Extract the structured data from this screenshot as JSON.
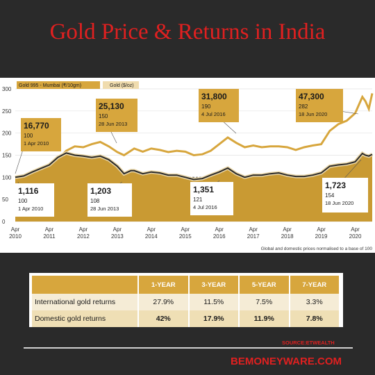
{
  "title": "Gold Price & Returns in India",
  "chart_data": {
    "type": "area",
    "legend": [
      "Gold 995 - Mumbai (₹/10gm)",
      "Gold ($/oz)"
    ],
    "legend_placement": "top-left",
    "ylim": [
      0,
      300
    ],
    "y_ticks": [
      "300",
      "250",
      "200",
      "150",
      "100",
      "50",
      "0"
    ],
    "x_ticks": [
      {
        "top": "Apr",
        "bottom": "2010"
      },
      {
        "top": "Apr",
        "bottom": "2011"
      },
      {
        "top": "Apr",
        "bottom": "2012"
      },
      {
        "top": "Apr",
        "bottom": "2013"
      },
      {
        "top": "Apr",
        "bottom": "2014"
      },
      {
        "top": "Apr",
        "bottom": "2015"
      },
      {
        "top": "Apr",
        "bottom": "2016"
      },
      {
        "top": "Apr",
        "bottom": "2017"
      },
      {
        "top": "Apr",
        "bottom": "2018"
      },
      {
        "top": "Apr",
        "bottom": "2019"
      },
      {
        "top": "Apr",
        "bottom": "2020"
      }
    ],
    "x_range": [
      2010.25,
      2020.75
    ],
    "series": [
      {
        "name": "Gold 995 - Mumbai (₹/10gm)",
        "color": "#d7a63d",
        "x": [
          2010.25,
          2010.5,
          2010.75,
          2011.0,
          2011.25,
          2011.5,
          2011.75,
          2012.0,
          2012.25,
          2012.5,
          2012.75,
          2013.0,
          2013.25,
          2013.45,
          2013.65,
          2013.75,
          2014.0,
          2014.25,
          2014.5,
          2014.75,
          2015.0,
          2015.25,
          2015.5,
          2015.75,
          2016.0,
          2016.25,
          2016.5,
          2016.75,
          2017.0,
          2017.25,
          2017.5,
          2017.75,
          2018.0,
          2018.25,
          2018.5,
          2018.75,
          2019.0,
          2019.25,
          2019.5,
          2019.75,
          2020.0,
          2020.25,
          2020.46,
          2020.55,
          2020.65,
          2020.75
        ],
        "values": [
          100,
          103,
          112,
          118,
          125,
          140,
          160,
          170,
          168,
          175,
          180,
          170,
          157,
          150,
          160,
          165,
          158,
          165,
          162,
          157,
          160,
          158,
          150,
          152,
          160,
          175,
          190,
          178,
          168,
          172,
          168,
          170,
          170,
          168,
          162,
          168,
          172,
          175,
          205,
          220,
          228,
          245,
          282,
          272,
          255,
          290
        ]
      },
      {
        "name": "Gold ($/oz)",
        "color": "#2a2a2a",
        "x": [
          2010.25,
          2010.5,
          2010.75,
          2011.0,
          2011.25,
          2011.5,
          2011.75,
          2012.0,
          2012.25,
          2012.5,
          2012.75,
          2013.0,
          2013.25,
          2013.45,
          2013.65,
          2013.75,
          2014.0,
          2014.25,
          2014.5,
          2014.75,
          2015.0,
          2015.25,
          2015.5,
          2015.75,
          2016.0,
          2016.25,
          2016.5,
          2016.75,
          2017.0,
          2017.25,
          2017.5,
          2017.75,
          2018.0,
          2018.25,
          2018.5,
          2018.75,
          2019.0,
          2019.25,
          2019.5,
          2019.75,
          2020.0,
          2020.25,
          2020.46,
          2020.55,
          2020.65,
          2020.75
        ],
        "values": [
          100,
          103,
          112,
          120,
          128,
          145,
          155,
          150,
          148,
          145,
          148,
          140,
          125,
          108,
          115,
          115,
          108,
          112,
          110,
          105,
          105,
          100,
          95,
          97,
          105,
          112,
          121,
          108,
          100,
          105,
          105,
          108,
          110,
          105,
          102,
          102,
          105,
          110,
          125,
          128,
          130,
          135,
          154,
          150,
          148,
          152
        ]
      }
    ],
    "annotations": [
      {
        "value": "16,770",
        "index": "100",
        "date": "1 Apr 2010",
        "series": 0
      },
      {
        "value": "25,130",
        "index": "150",
        "date": "28 Jun 2013",
        "series": 0
      },
      {
        "value": "31,800",
        "index": "190",
        "date": "4 Jul 2016",
        "series": 0
      },
      {
        "value": "47,300",
        "index": "282",
        "date": "18 Jun 2020",
        "series": 0
      },
      {
        "value": "1,116",
        "index": "100",
        "date": "1 Apr 2010",
        "series": 1
      },
      {
        "value": "1,203",
        "index": "108",
        "date": "28 Jun 2013",
        "series": 1
      },
      {
        "value": "1,351",
        "index": "121",
        "date": "4 Jul 2016",
        "series": 1
      },
      {
        "value": "1,723",
        "index": "154",
        "date": "18 Jun 2020",
        "series": 1
      }
    ],
    "footnote": "Global and domestic prices normalised to a base of 100"
  },
  "returns_table": {
    "columns": [
      "1-YEAR",
      "3-YEAR",
      "5-YEAR",
      "7-YEAR"
    ],
    "rows": [
      {
        "label": "International gold returns",
        "values": [
          "27.9%",
          "11.5%",
          "7.5%",
          "3.3%"
        ]
      },
      {
        "label": "Domestic gold returns",
        "values": [
          "42%",
          "17.9%",
          "11.9%",
          "7.8%"
        ]
      }
    ]
  },
  "source": "SOURCE:ETWEALTH",
  "brand": "BEMONEYWARE.COM",
  "colors": {
    "background": "#2a2a2a",
    "accent_red": "#e02020",
    "gold": "#d7a63d",
    "gold_fill": "#c99a33"
  }
}
